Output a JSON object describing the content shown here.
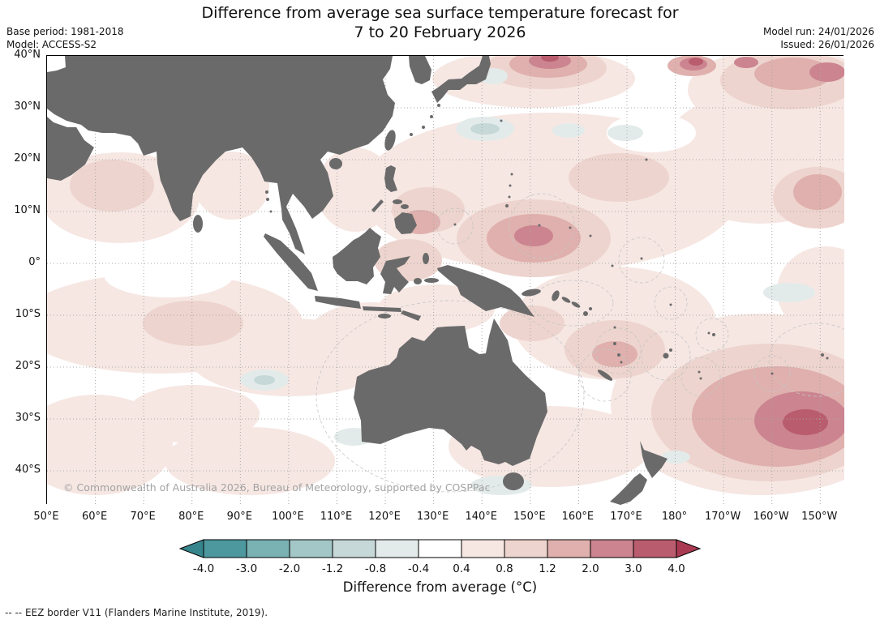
{
  "title": {
    "line1": "Difference from average sea surface temperature forecast for",
    "line2": "7 to 20 February 2026"
  },
  "meta": {
    "base_period": "Base period: 1981-2018",
    "model": "Model: ACCESS-S2",
    "model_run": "Model run: 24/01/2026",
    "issued": "Issued: 26/01/2026"
  },
  "map": {
    "copyright": "© Commonwealth of Australia 2026, Bureau of Meteorology, supported by COSPPac",
    "lat_labels": [
      "40°N",
      "30°N",
      "20°N",
      "10°N",
      "0°",
      "10°S",
      "20°S",
      "30°S",
      "40°S"
    ],
    "lon_labels": [
      "50°E",
      "60°E",
      "70°E",
      "80°E",
      "90°E",
      "100°E",
      "110°E",
      "120°E",
      "130°E",
      "140°E",
      "150°E",
      "160°E",
      "170°E",
      "180°",
      "170°W",
      "160°W",
      "150°W"
    ],
    "land_color": "#6a6a6a",
    "grid_color": "#a8a8a8",
    "eez_line_color": "#c6c6c6"
  },
  "colorbar": {
    "label": "Difference from average (°C)",
    "tick_labels": [
      "-4.0",
      "-3.0",
      "-2.0",
      "-1.2",
      "-0.8",
      "-0.4",
      "0.4",
      "0.8",
      "1.2",
      "2.0",
      "3.0",
      "4.0"
    ],
    "segment_colors": [
      "#4d989e",
      "#7ab1b3",
      "#a3c6c6",
      "#c6d8d7",
      "#e3ebea",
      "#ffffff",
      "#f6e7e3",
      "#eed4ce",
      "#dfb0ad",
      "#cb8490",
      "#b95c6e"
    ],
    "arrow_left_color": "#37858c",
    "arrow_right_color": "#a93a52"
  },
  "footer": {
    "eez_note": "--  --  EEZ border V11 (Flanders Marine Institute, 2019)."
  }
}
